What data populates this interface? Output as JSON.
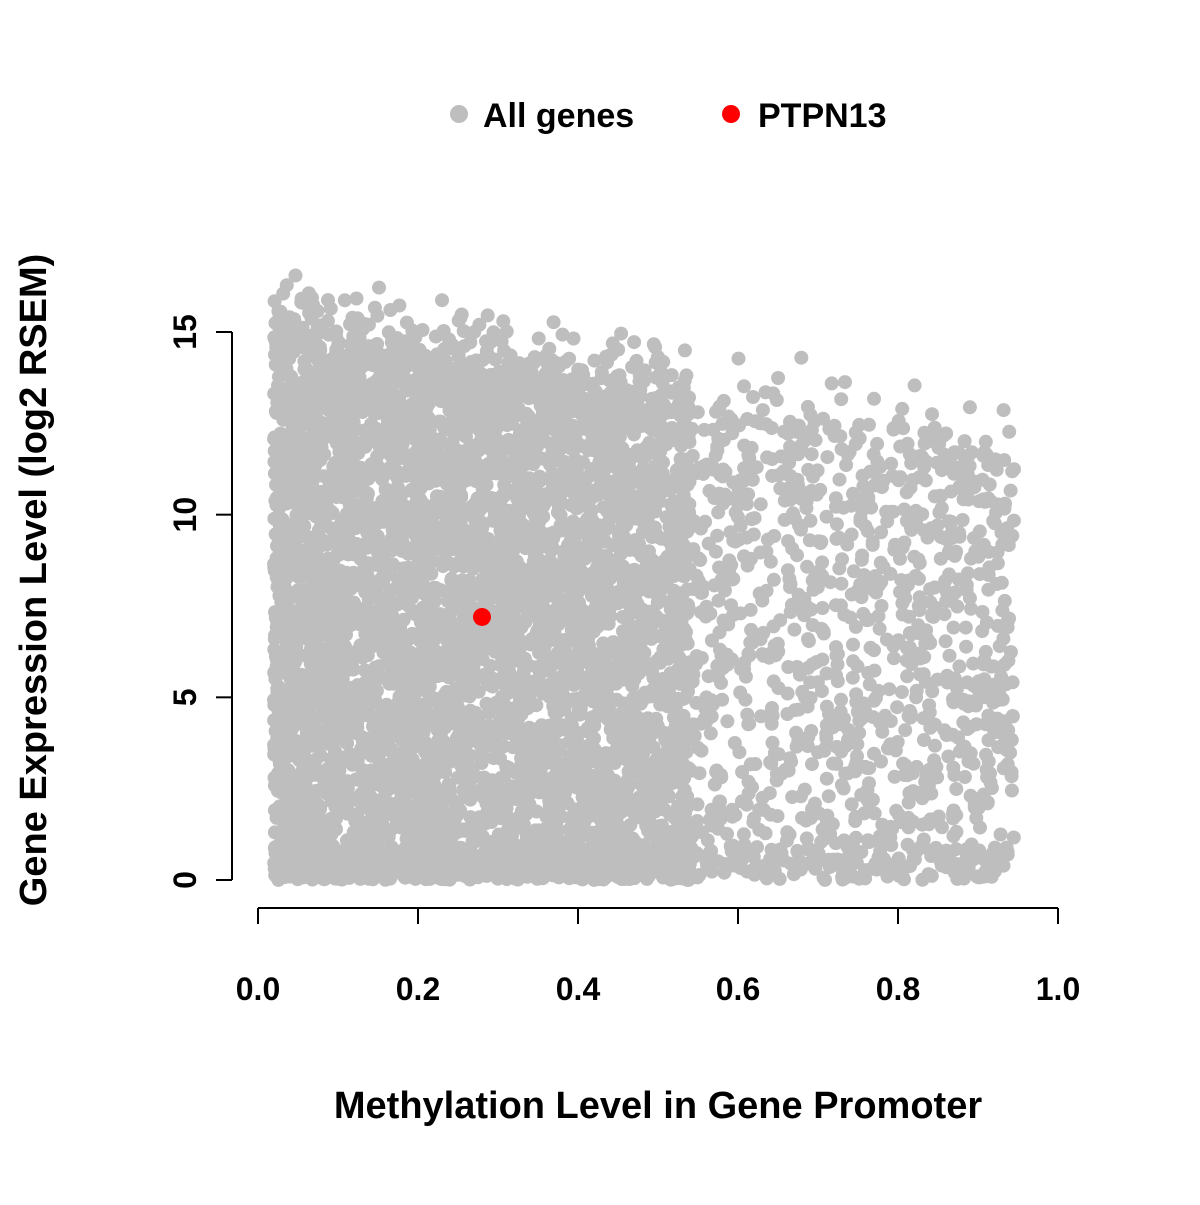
{
  "chart_data": {
    "type": "scatter",
    "title": "",
    "xlabel": "Methylation Level in Gene Promoter",
    "ylabel": "Gene Expression Level (log2 RSEM)",
    "xlim": [
      0.0,
      1.0
    ],
    "ylim": [
      0,
      15
    ],
    "grid": false,
    "legend_position": "top-center",
    "x_ticks": [
      {
        "v": 0.0,
        "label": "0.0"
      },
      {
        "v": 0.2,
        "label": "0.2"
      },
      {
        "v": 0.4,
        "label": "0.4"
      },
      {
        "v": 0.6,
        "label": "0.6"
      },
      {
        "v": 0.8,
        "label": "0.8"
      },
      {
        "v": 1.0,
        "label": "1.0"
      }
    ],
    "y_ticks": [
      {
        "v": 0,
        "label": "0"
      },
      {
        "v": 5,
        "label": "5"
      },
      {
        "v": 10,
        "label": "10"
      },
      {
        "v": 15,
        "label": "15"
      }
    ],
    "series": [
      {
        "name": "All genes",
        "color": "#BEBEBE",
        "description": "Dense cloud of thousands of genes; methylation 0.02-0.95, expression 0 to ~17; upper envelope of expression declines as methylation increases; densest at low methylation and near expression 0."
      },
      {
        "name": "PTPN13",
        "color": "#FF0000",
        "points": [
          [
            0.28,
            7.2
          ]
        ]
      }
    ],
    "generator": {
      "seed": 42,
      "n_points": 7000,
      "x_min": 0.02,
      "x_max": 0.945,
      "x_left_frac": 0.62,
      "x_left_span": 0.52,
      "x_left_pow": 1.15,
      "env_base": 14.6,
      "env_slope": -3.6,
      "frac_bottom": 0.1,
      "bottom_max": 0.9,
      "frac_fringe": 0.07,
      "fringe_max": 2.3,
      "point_radius": 7,
      "highlight_radius": 9
    }
  },
  "legend": {
    "items": [
      {
        "label": "All genes",
        "color": "#BEBEBE"
      },
      {
        "label": "PTPN13",
        "color": "#FF0000"
      }
    ]
  },
  "labels": {
    "xlabel": "Methylation Level in Gene Promoter",
    "ylabel": "Gene Expression Level (log2 RSEM)"
  }
}
